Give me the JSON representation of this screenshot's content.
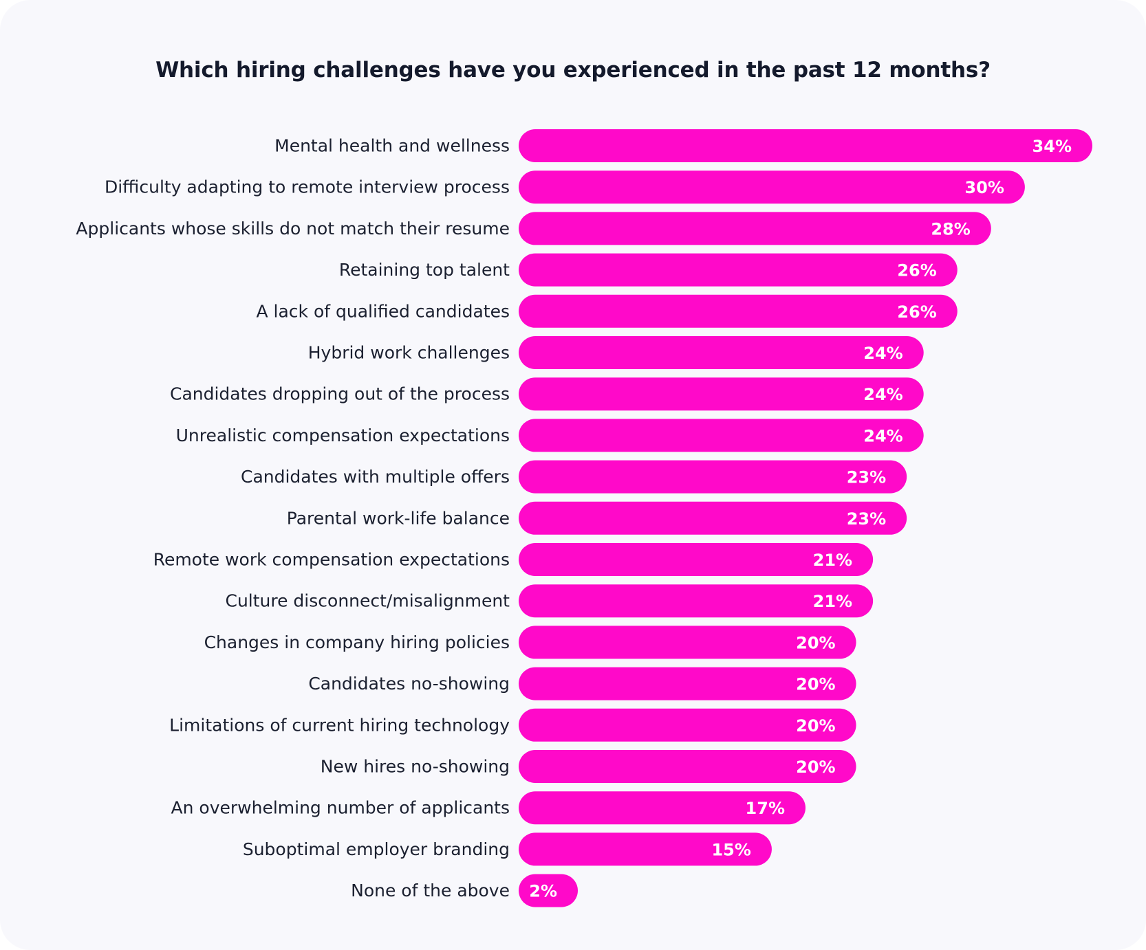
{
  "chart_data": {
    "type": "bar",
    "orientation": "horizontal",
    "title": "Which hiring challenges have you experienced in the past 12 months?",
    "categories": [
      "Mental health and wellness",
      "Difficulty adapting to remote interview process",
      "Applicants whose skills do not match their resume",
      "Retaining top talent",
      "A lack of qualified candidates",
      "Hybrid work challenges",
      "Candidates dropping out of the process",
      "Unrealistic compensation expectations",
      "Candidates with multiple offers",
      "Parental work-life balance",
      "Remote work compensation expectations",
      "Culture disconnect/misalignment",
      "Changes in company hiring policies",
      "Candidates no-showing",
      "Limitations of current hiring technology",
      "New hires no-showing",
      "An overwhelming number of applicants",
      "Suboptimal employer branding",
      "None of the above"
    ],
    "values": [
      34,
      30,
      28,
      26,
      26,
      24,
      24,
      24,
      23,
      23,
      21,
      21,
      20,
      20,
      20,
      20,
      17,
      15,
      2
    ],
    "value_labels": [
      "34%",
      "30%",
      "28%",
      "26%",
      "26%",
      "24%",
      "24%",
      "24%",
      "23%",
      "23%",
      "21%",
      "21%",
      "20%",
      "20%",
      "20%",
      "20%",
      "17%",
      "15%",
      "2%"
    ],
    "xlim": [
      0,
      34
    ],
    "grid": false,
    "legend": "none",
    "bar_color": "#ff09c9",
    "value_label_color": "#ffffff",
    "label_color": "#1b2030",
    "title_color": "#141a2c",
    "background_color": "#f8f8fc"
  }
}
